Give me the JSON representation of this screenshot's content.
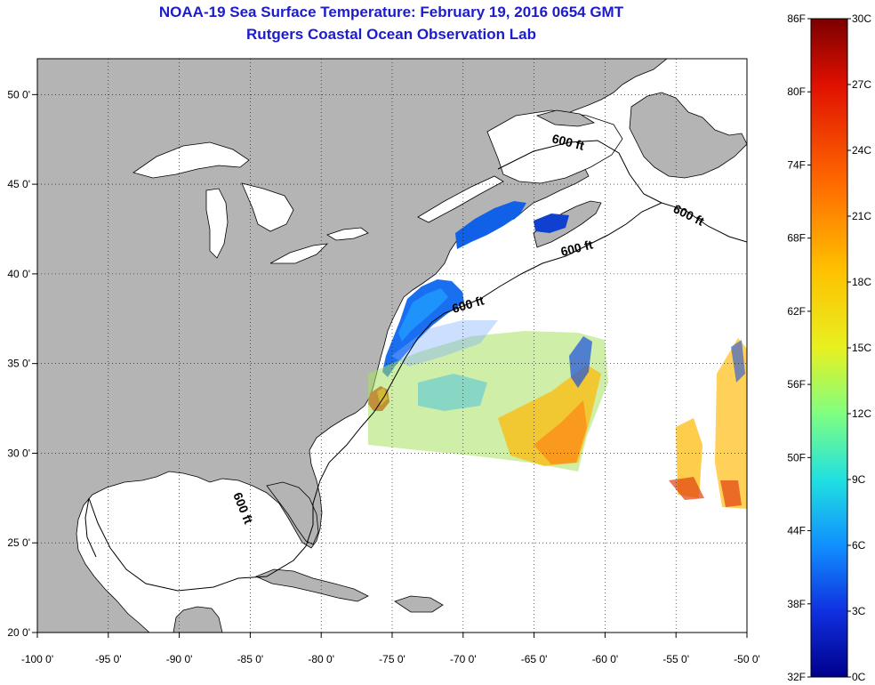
{
  "title": "NOAA-19 Sea Surface Temperature:  February 19, 2016 0654 GMT",
  "subtitle": "Rutgers Coastal Ocean Observation Lab",
  "map": {
    "lon_range": [
      -100,
      -50
    ],
    "lat_range": [
      20,
      52
    ],
    "lon_ticks": [
      "-100 0'",
      "-95 0'",
      "-90 0'",
      "-85 0'",
      "-80 0'",
      "-75 0'",
      "-70 0'",
      "-65 0'",
      "-60 0'",
      "-55 0'",
      "-50 0'"
    ],
    "lat_ticks": [
      "20 0'",
      "25 0'",
      "30 0'",
      "35 0'",
      "40 0'",
      "45 0'",
      "50 0'"
    ],
    "contour_label": "600 ft",
    "land_color": "#b4b4b4",
    "ocean_color": "#ffffff",
    "grid": true
  },
  "colorbar": {
    "fahrenheit_labels": [
      "86F",
      "80F",
      "74F",
      "68F",
      "62F",
      "56F",
      "50F",
      "44F",
      "38F",
      "32F"
    ],
    "celsius_labels": [
      "30C",
      "27C",
      "24C",
      "21C",
      "18C",
      "15C",
      "12C",
      "9C",
      "6C",
      "3C",
      "0C"
    ],
    "colors": [
      "#7a0000",
      "#e01000",
      "#ff6a00",
      "#ffc000",
      "#e8f020",
      "#80ff80",
      "#20e0e0",
      "#1090ff",
      "#1030e0",
      "#00008c"
    ]
  }
}
